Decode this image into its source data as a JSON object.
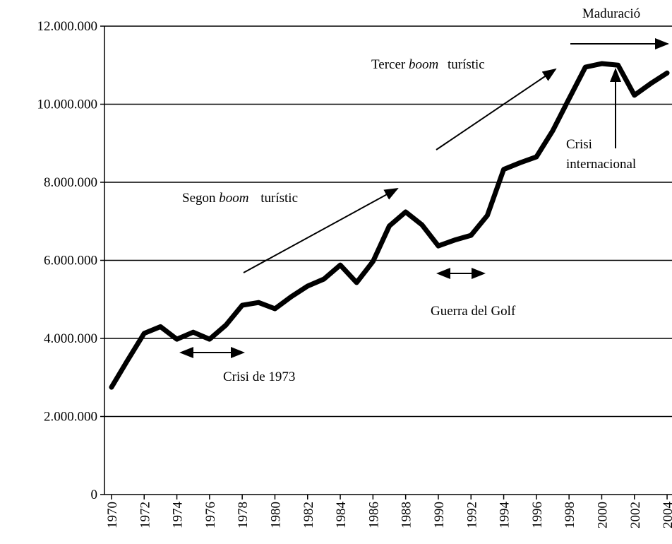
{
  "chart_data": {
    "type": "line",
    "x": [
      1970,
      1971,
      1972,
      1973,
      1974,
      1975,
      1976,
      1977,
      1978,
      1979,
      1980,
      1981,
      1982,
      1983,
      1984,
      1985,
      1986,
      1987,
      1988,
      1989,
      1990,
      1991,
      1992,
      1993,
      1994,
      1995,
      1996,
      1997,
      1998,
      1999,
      2000,
      2001,
      2002,
      2003,
      2004
    ],
    "series": [
      {
        "color": "#000000",
        "values": [
          2750000,
          3450000,
          4130000,
          4300000,
          3980000,
          4160000,
          3980000,
          4340000,
          4850000,
          4920000,
          4760000,
          5070000,
          5340000,
          5520000,
          5880000,
          5430000,
          5970000,
          6880000,
          7240000,
          6910000,
          6370000,
          6520000,
          6640000,
          7150000,
          8330000,
          8500000,
          8650000,
          9320000,
          10140000,
          10950000,
          11040000,
          11000000,
          10230000,
          10530000,
          10800000
        ]
      }
    ],
    "xlim": [
      1969.57,
      2004.3
    ],
    "xticks": [
      1970,
      1972,
      1974,
      1976,
      1978,
      1980,
      1982,
      1984,
      1986,
      1988,
      1990,
      1992,
      1994,
      1996,
      1998,
      2000,
      2002,
      2004
    ],
    "ylim": [
      0,
      12000000
    ],
    "yticks": [
      0,
      {
        "value": 2000000,
        "label": "2.000.000"
      },
      {
        "value": 4000000,
        "label": "4.000.000"
      },
      {
        "value": 6000000,
        "label": "6.000.000"
      },
      {
        "value": 8000000,
        "label": "8.000.000"
      },
      {
        "value": 10000000,
        "label": "10.000.000"
      },
      {
        "value": 12000000,
        "label": "12.000.000"
      }
    ],
    "grid": true,
    "annotations": {
      "maduracio": "Maduració",
      "tercer": [
        "Tercer",
        "boom",
        "turístic"
      ],
      "segon": [
        "Segon",
        "boom",
        "turístic"
      ],
      "crisi_int": [
        "Crisi",
        "internacional"
      ],
      "golf": "Guerra del Golf",
      "crisi73": "Crisi de 1973"
    }
  }
}
